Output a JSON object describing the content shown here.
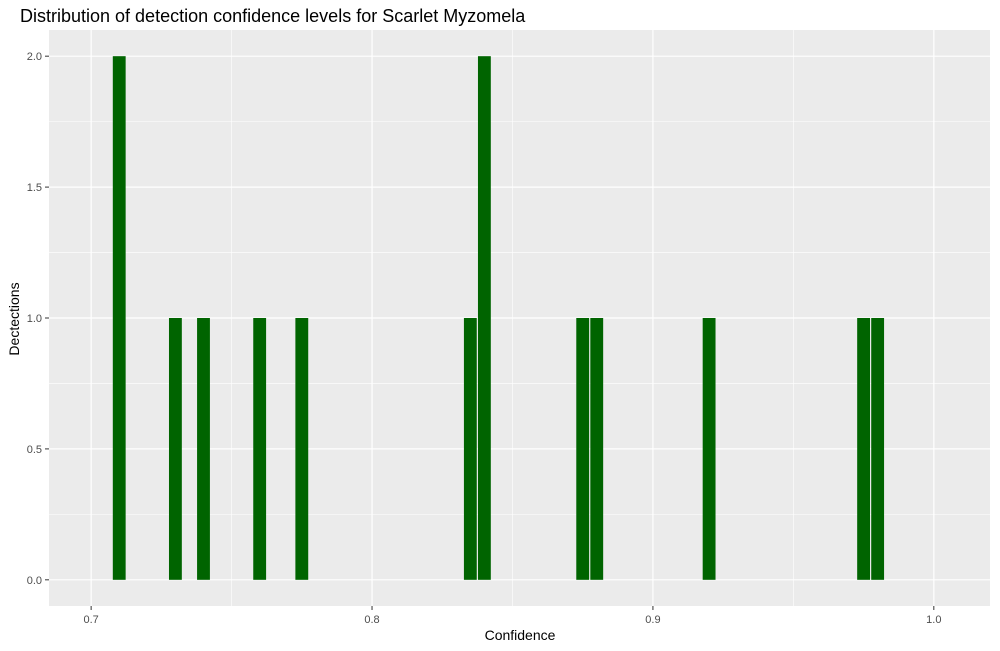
{
  "chart_data": {
    "type": "bar",
    "title": "Distribution of detection confidence levels for Scarlet Myzomela",
    "xlabel": "Confidence",
    "ylabel": "Dectections",
    "xlim": [
      0.685,
      1.02
    ],
    "ylim": [
      -0.1,
      2.1
    ],
    "x_ticks": [
      0.7,
      0.8,
      0.9,
      1.0
    ],
    "x_tick_labels": [
      "0.7",
      "0.8",
      "0.9",
      "1.0"
    ],
    "y_ticks": [
      0.0,
      0.5,
      1.0,
      1.5,
      2.0
    ],
    "y_tick_labels": [
      "0.0",
      "0.5",
      "1.0",
      "1.5",
      "2.0"
    ],
    "bin_width": 0.005,
    "bars": [
      {
        "x": 0.71,
        "count": 2
      },
      {
        "x": 0.73,
        "count": 1
      },
      {
        "x": 0.74,
        "count": 1
      },
      {
        "x": 0.76,
        "count": 1
      },
      {
        "x": 0.775,
        "count": 1
      },
      {
        "x": 0.835,
        "count": 1
      },
      {
        "x": 0.84,
        "count": 2
      },
      {
        "x": 0.875,
        "count": 1
      },
      {
        "x": 0.88,
        "count": 1
      },
      {
        "x": 0.92,
        "count": 1
      },
      {
        "x": 0.975,
        "count": 1
      },
      {
        "x": 0.98,
        "count": 1
      }
    ],
    "bar_color": "#006400",
    "panel_color": "#EBEBEB",
    "grid": true,
    "legend": "none"
  }
}
